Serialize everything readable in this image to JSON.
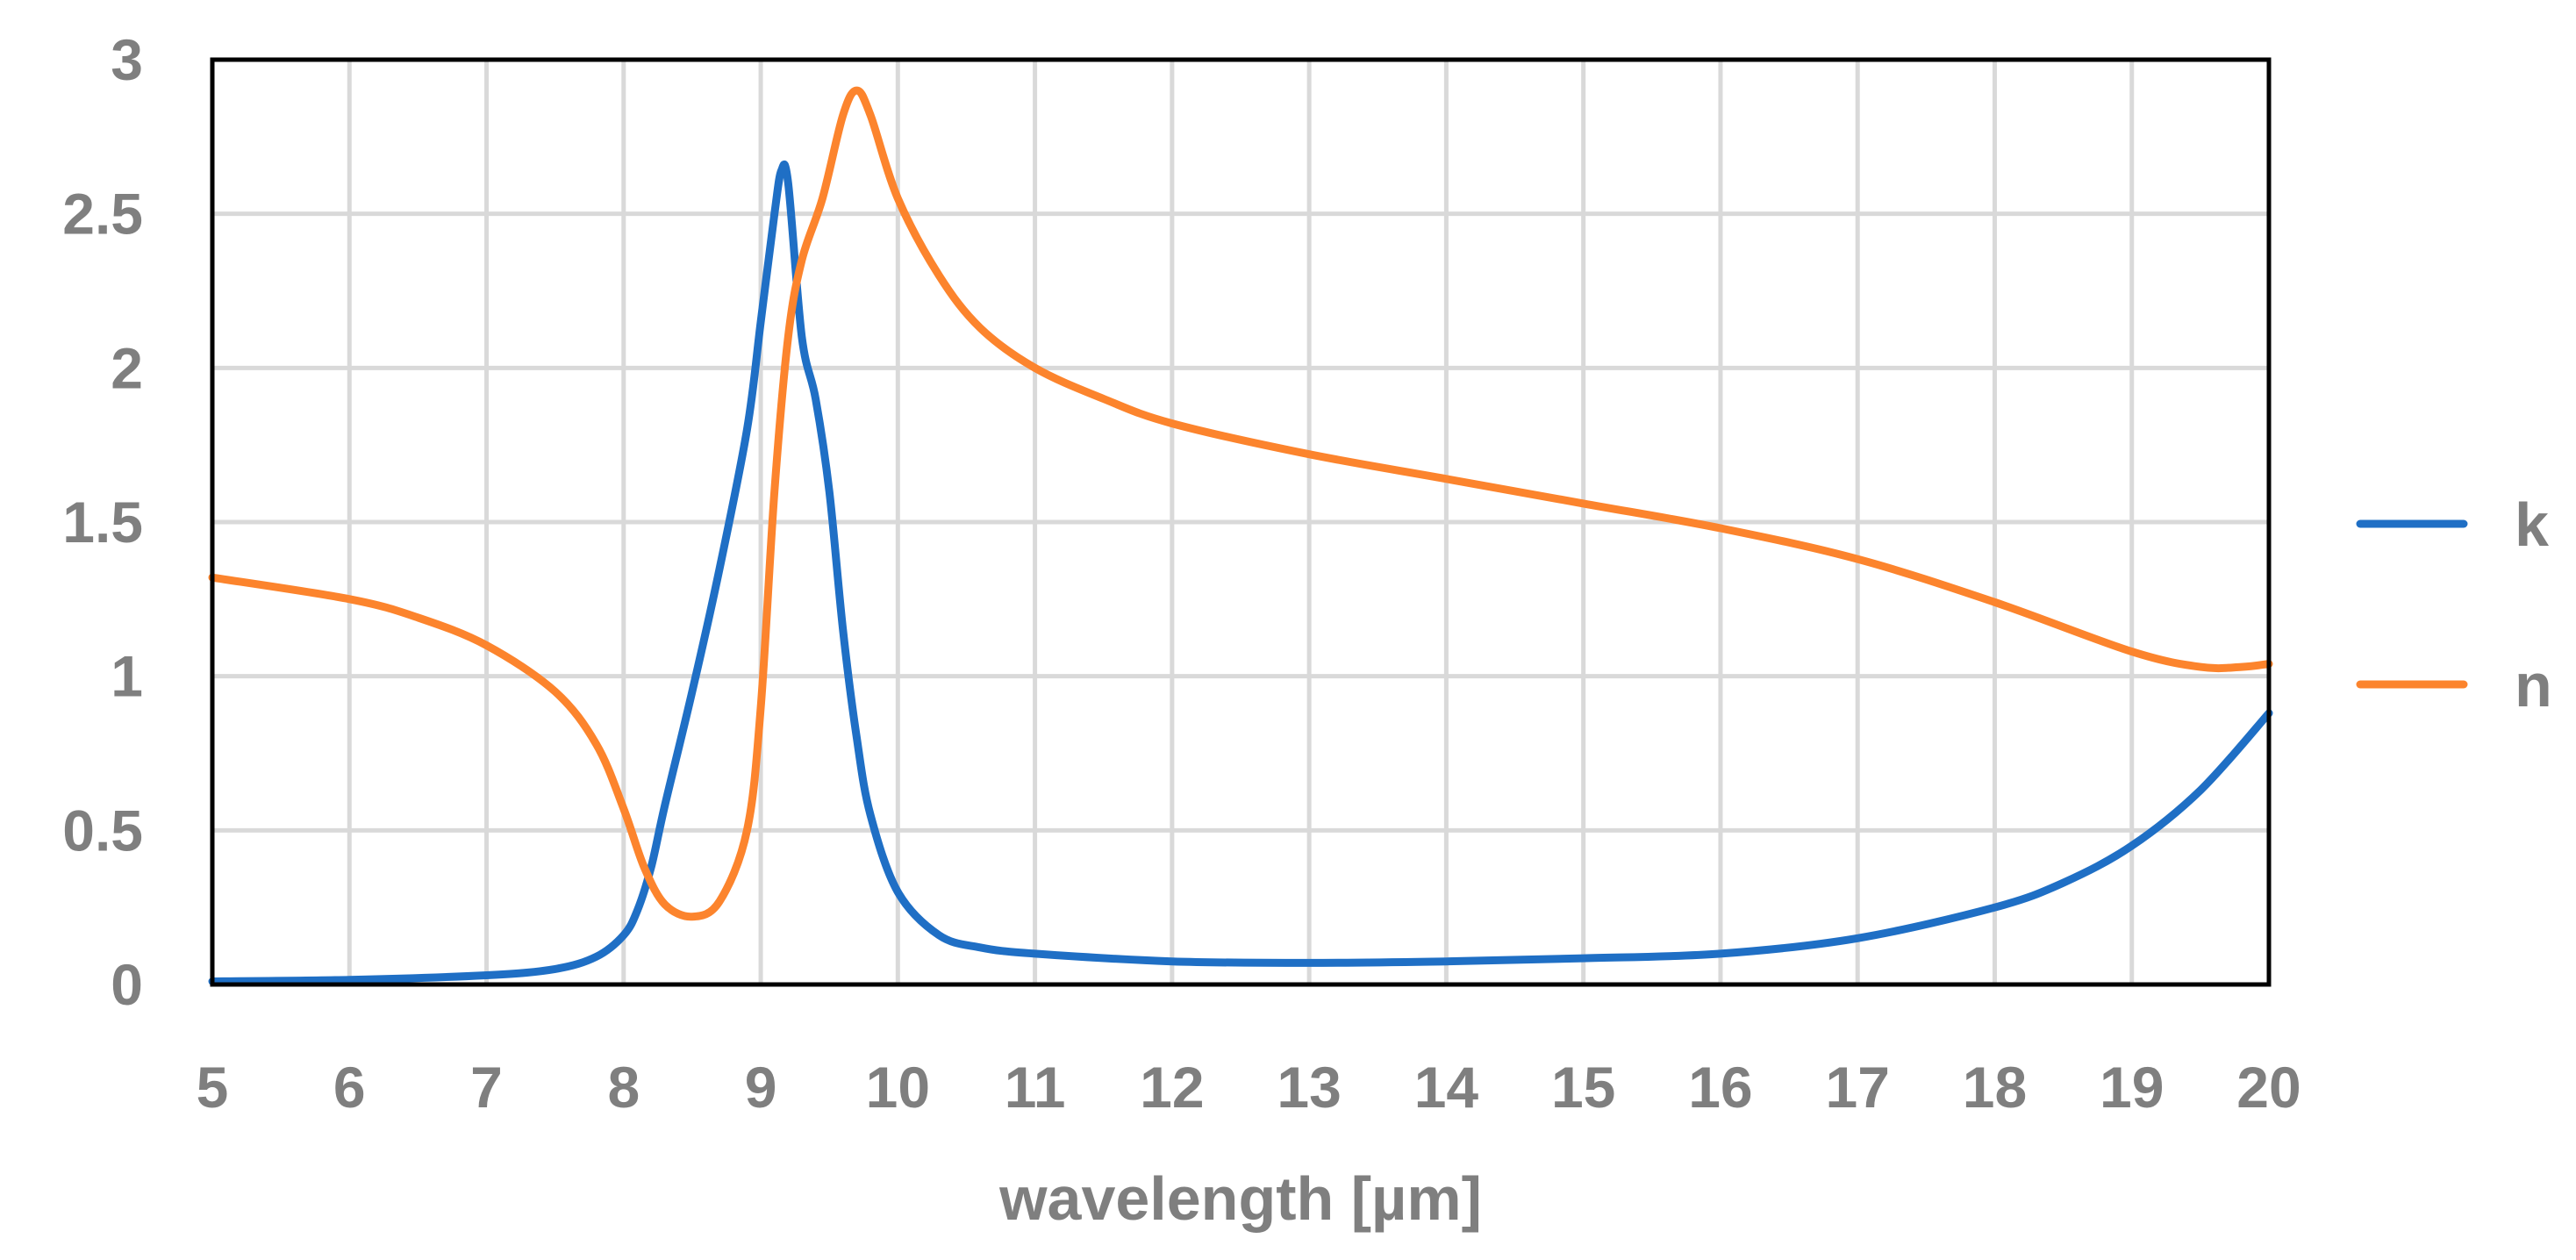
{
  "chart_data": {
    "type": "line",
    "title": "",
    "xlabel": "wavelength [µm]",
    "ylabel": "",
    "xlim": [
      5,
      20
    ],
    "ylim": [
      0,
      3
    ],
    "xticks": [
      5,
      6,
      7,
      8,
      9,
      10,
      11,
      12,
      13,
      14,
      15,
      16,
      17,
      18,
      19,
      20
    ],
    "yticks": [
      0,
      0.5,
      1,
      1.5,
      2,
      2.5,
      3
    ],
    "ytick_labels": [
      "0",
      "0.5",
      "1",
      "1.5",
      "2",
      "2.5",
      "3"
    ],
    "grid": true,
    "legend_position": "right",
    "series": [
      {
        "name": "k",
        "color": "#1f6fc5",
        "points": [
          [
            5,
            0.01
          ],
          [
            6,
            0.015
          ],
          [
            7,
            0.03
          ],
          [
            7.5,
            0.05
          ],
          [
            7.8,
            0.09
          ],
          [
            8.0,
            0.16
          ],
          [
            8.1,
            0.24
          ],
          [
            8.2,
            0.38
          ],
          [
            8.3,
            0.58
          ],
          [
            8.5,
            0.95
          ],
          [
            8.7,
            1.35
          ],
          [
            8.9,
            1.8
          ],
          [
            9.0,
            2.15
          ],
          [
            9.1,
            2.5
          ],
          [
            9.15,
            2.64
          ],
          [
            9.2,
            2.6
          ],
          [
            9.3,
            2.1
          ],
          [
            9.4,
            1.9
          ],
          [
            9.5,
            1.6
          ],
          [
            9.6,
            1.15
          ],
          [
            9.7,
            0.8
          ],
          [
            9.8,
            0.55
          ],
          [
            10.0,
            0.3
          ],
          [
            10.3,
            0.16
          ],
          [
            10.6,
            0.12
          ],
          [
            11,
            0.1
          ],
          [
            12,
            0.075
          ],
          [
            13,
            0.07
          ],
          [
            14,
            0.075
          ],
          [
            15,
            0.085
          ],
          [
            16,
            0.1
          ],
          [
            17,
            0.15
          ],
          [
            18,
            0.25
          ],
          [
            18.5,
            0.33
          ],
          [
            19,
            0.45
          ],
          [
            19.5,
            0.63
          ],
          [
            20,
            0.88
          ]
        ]
      },
      {
        "name": "n",
        "color": "#fc842d",
        "points": [
          [
            5,
            1.32
          ],
          [
            6,
            1.25
          ],
          [
            6.5,
            1.19
          ],
          [
            7,
            1.1
          ],
          [
            7.5,
            0.95
          ],
          [
            7.8,
            0.78
          ],
          [
            8.0,
            0.57
          ],
          [
            8.15,
            0.38
          ],
          [
            8.3,
            0.26
          ],
          [
            8.5,
            0.22
          ],
          [
            8.7,
            0.27
          ],
          [
            8.9,
            0.5
          ],
          [
            9.0,
            0.9
          ],
          [
            9.1,
            1.6
          ],
          [
            9.2,
            2.1
          ],
          [
            9.3,
            2.35
          ],
          [
            9.45,
            2.55
          ],
          [
            9.6,
            2.82
          ],
          [
            9.7,
            2.9
          ],
          [
            9.8,
            2.82
          ],
          [
            10,
            2.55
          ],
          [
            10.3,
            2.3
          ],
          [
            10.6,
            2.13
          ],
          [
            11,
            2.0
          ],
          [
            11.5,
            1.9
          ],
          [
            12,
            1.82
          ],
          [
            13,
            1.72
          ],
          [
            14,
            1.64
          ],
          [
            15,
            1.56
          ],
          [
            16,
            1.48
          ],
          [
            17,
            1.38
          ],
          [
            18,
            1.24
          ],
          [
            19,
            1.08
          ],
          [
            19.5,
            1.03
          ],
          [
            19.8,
            1.03
          ],
          [
            20,
            1.04
          ]
        ]
      }
    ]
  }
}
